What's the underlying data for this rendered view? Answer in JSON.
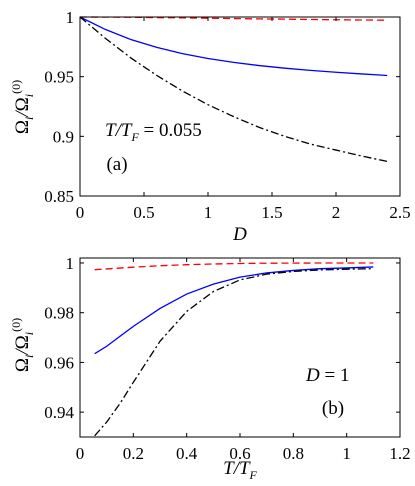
{
  "chart_data": [
    {
      "type": "line",
      "panel_label": "(a)",
      "annotation": "T/T_F = 0.055",
      "xlabel": "D",
      "ylabel": "Ω_i/Ω_i^(0)",
      "xlim": [
        0,
        2.5
      ],
      "ylim": [
        0.85,
        1.0
      ],
      "xticks": [
        "0",
        "0.5",
        "1",
        "1.5",
        "2",
        "2.5"
      ],
      "yticks": [
        "0.85",
        "0.9",
        "0.95",
        "1"
      ],
      "grid": false,
      "series": [
        {
          "color": "#ff0000",
          "style": "dashed",
          "x": [
            0,
            0.2,
            0.4,
            0.6,
            0.8,
            1.0,
            1.2,
            1.4,
            1.6,
            1.8,
            2.0,
            2.2,
            2.4
          ],
          "y": [
            1.0,
            0.9999,
            0.9998,
            0.9995,
            0.9993,
            0.999,
            0.9987,
            0.9984,
            0.9982,
            0.9979,
            0.9977,
            0.9975,
            0.9973
          ]
        },
        {
          "color": "#0000ff",
          "style": "solid",
          "x": [
            0,
            0.2,
            0.4,
            0.6,
            0.8,
            1.0,
            1.2,
            1.4,
            1.6,
            1.8,
            2.0,
            2.2,
            2.4
          ],
          "y": [
            1.0,
            0.9895,
            0.981,
            0.9745,
            0.9693,
            0.9652,
            0.962,
            0.9593,
            0.9571,
            0.9553,
            0.9537,
            0.9523,
            0.951
          ]
        },
        {
          "color": "#000000",
          "style": "dashdot",
          "x": [
            0,
            0.2,
            0.4,
            0.6,
            0.8,
            1.0,
            1.2,
            1.4,
            1.6,
            1.8,
            2.0,
            2.2,
            2.4
          ],
          "y": [
            1.0,
            0.982,
            0.9655,
            0.951,
            0.938,
            0.9265,
            0.9165,
            0.9075,
            0.9,
            0.8935,
            0.8885,
            0.8835,
            0.879
          ]
        }
      ]
    },
    {
      "type": "line",
      "panel_label": "(b)",
      "annotation": "D = 1",
      "xlabel": "T/T_F",
      "ylabel": "Ω_i/Ω_i^(0)",
      "xlim": [
        0,
        1.2
      ],
      "ylim": [
        0.93,
        1.002
      ],
      "xticks": [
        "0",
        "0.2",
        "0.4",
        "0.6",
        "0.8",
        "1",
        "1.2"
      ],
      "yticks": [
        "0.94",
        "0.96",
        "0.98",
        "1"
      ],
      "grid": false,
      "series": [
        {
          "color": "#ff0000",
          "style": "dashed",
          "x": [
            0.055,
            0.1,
            0.2,
            0.3,
            0.4,
            0.5,
            0.6,
            0.7,
            0.8,
            0.9,
            1.0,
            1.1
          ],
          "y": [
            0.9973,
            0.9976,
            0.9983,
            0.9989,
            0.9993,
            0.9996,
            0.9998,
            0.9999,
            0.99995,
            0.99998,
            1.0,
            1.0
          ]
        },
        {
          "color": "#0000ff",
          "style": "solid",
          "x": [
            0.055,
            0.1,
            0.2,
            0.3,
            0.4,
            0.5,
            0.6,
            0.7,
            0.8,
            0.9,
            1.0,
            1.1
          ],
          "y": [
            0.9635,
            0.9665,
            0.9745,
            0.9817,
            0.9875,
            0.9915,
            0.9943,
            0.996,
            0.997,
            0.9977,
            0.998,
            0.9984
          ]
        },
        {
          "color": "#000000",
          "style": "dashdot",
          "x": [
            0.055,
            0.1,
            0.15,
            0.2,
            0.3,
            0.4,
            0.5,
            0.6,
            0.7,
            0.8,
            0.9,
            1.0,
            1.1
          ],
          "y": [
            0.9305,
            0.936,
            0.9435,
            0.952,
            0.9685,
            0.9805,
            0.9885,
            0.9932,
            0.9955,
            0.9966,
            0.9972,
            0.9975,
            0.9977
          ]
        }
      ]
    }
  ]
}
